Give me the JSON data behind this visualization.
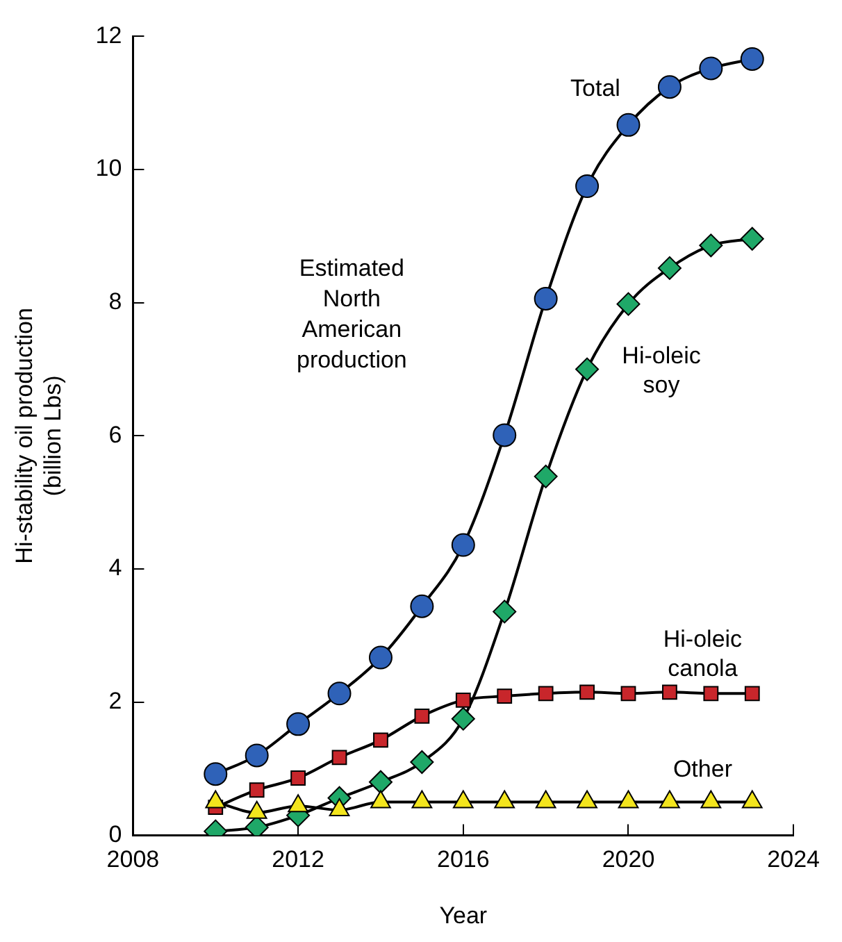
{
  "chart_data": {
    "type": "line",
    "xlabel": "Year",
    "ylabel": "Hi-stability oil production\n(billion Lbs)",
    "x": [
      2010,
      2011,
      2012,
      2013,
      2014,
      2015,
      2016,
      2017,
      2018,
      2019,
      2020,
      2021,
      2022,
      2023
    ],
    "series": [
      {
        "name": "Total",
        "color": "#2f62b8",
        "marker": "circle",
        "values": [
          0.92,
          1.2,
          1.67,
          2.13,
          2.67,
          3.44,
          4.36,
          6.01,
          8.06,
          9.75,
          10.67,
          11.24,
          11.52,
          11.66
        ]
      },
      {
        "name": "Hi-oleic soy",
        "color": "#1fa868",
        "marker": "diamond",
        "values": [
          0.06,
          0.12,
          0.3,
          0.56,
          0.8,
          1.1,
          1.75,
          3.36,
          5.39,
          7.0,
          7.98,
          8.52,
          8.86,
          8.96
        ]
      },
      {
        "name": "Hi-oleic canola",
        "color": "#c8262b",
        "marker": "square",
        "values": [
          0.42,
          0.68,
          0.86,
          1.17,
          1.43,
          1.79,
          2.03,
          2.09,
          2.13,
          2.15,
          2.13,
          2.15,
          2.13,
          2.13
        ]
      },
      {
        "name": "Other",
        "color": "#f3e51d",
        "marker": "triangle",
        "values": [
          0.5,
          0.34,
          0.44,
          0.38,
          0.5,
          0.5,
          0.5,
          0.5,
          0.5,
          0.5,
          0.5,
          0.5,
          0.5,
          0.5
        ]
      }
    ],
    "xlim": [
      2008,
      2024
    ],
    "xticks": [
      2008,
      2012,
      2016,
      2020,
      2024
    ],
    "ylim": [
      0,
      12
    ],
    "yticks": [
      0,
      2,
      4,
      6,
      8,
      10,
      12
    ],
    "grid": false,
    "legend": false,
    "line_style": "solid",
    "annotations": [
      "Estimated North American production"
    ]
  }
}
